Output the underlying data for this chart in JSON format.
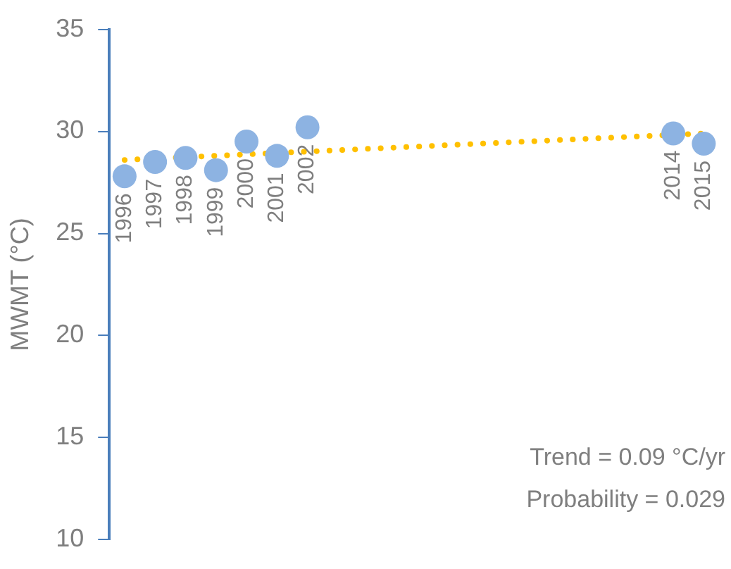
{
  "chart_data": {
    "type": "scatter",
    "ylabel": "MWMT (°C)",
    "categories": [
      "1996",
      "1997",
      "1998",
      "1999",
      "2000",
      "2001",
      "2002",
      null,
      null,
      null,
      null,
      null,
      null,
      null,
      null,
      null,
      null,
      null,
      "2014",
      "2015"
    ],
    "ylim": [
      10,
      35
    ],
    "yticks": [
      10,
      15,
      20,
      25,
      30,
      35
    ],
    "grid": false,
    "legend": false,
    "marker": "circle",
    "series": [
      {
        "color": "#8db3e2",
        "values": [
          27.8,
          28.5,
          28.7,
          28.1,
          29.5,
          28.8,
          30.2,
          null,
          null,
          null,
          null,
          null,
          null,
          null,
          null,
          null,
          null,
          null,
          29.9,
          29.4
        ]
      },
      {
        "type": "line",
        "color": "#ffc000",
        "line_style": "dotted",
        "marker": "none",
        "values": [
          28.6,
          null,
          null,
          null,
          null,
          null,
          null,
          null,
          null,
          null,
          null,
          null,
          null,
          null,
          null,
          null,
          null,
          null,
          null,
          29.9
        ]
      }
    ],
    "annotations": [
      "Trend = 0.09 °C/yr",
      "Probability = 0.029"
    ]
  }
}
